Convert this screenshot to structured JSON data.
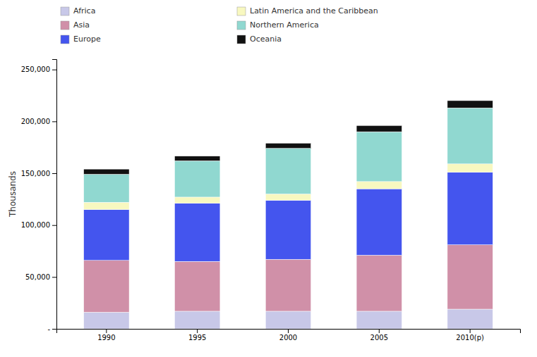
{
  "chart_data": {
    "type": "bar",
    "stacked": true,
    "categories": [
      "1990",
      "1995",
      "2000",
      "2005",
      "2010(p)"
    ],
    "series": [
      {
        "name": "Africa",
        "color": "#c8c8e8",
        "values": [
          16000,
          17000,
          17000,
          17000,
          19000
        ]
      },
      {
        "name": "Asia",
        "color": "#d090a8",
        "values": [
          50000,
          48000,
          50000,
          54000,
          62000
        ]
      },
      {
        "name": "Europe",
        "color": "#4455ee",
        "values": [
          49000,
          56000,
          57000,
          64000,
          70000
        ]
      },
      {
        "name": "Latin America and the Caribbean",
        "color": "#f8f8c0",
        "values": [
          7000,
          6000,
          6000,
          7000,
          8000
        ]
      },
      {
        "name": "Northern America",
        "color": "#90d8d0",
        "values": [
          27000,
          35000,
          44000,
          48000,
          54000
        ]
      },
      {
        "name": "Oceania",
        "color": "#111111",
        "values": [
          5000,
          4500,
          5000,
          6000,
          7000
        ]
      }
    ],
    "ylabel": "Thousands",
    "ylim": [
      0,
      260000
    ],
    "yticks": [
      {
        "value": 0,
        "label": "-"
      },
      {
        "value": 50000,
        "label": "50,000"
      },
      {
        "value": 100000,
        "label": "100,000"
      },
      {
        "value": 150000,
        "label": "150,000"
      },
      {
        "value": 200000,
        "label": "200,000"
      },
      {
        "value": 250000,
        "label": "250,000"
      }
    ],
    "legend": "upper left",
    "grid": false
  }
}
